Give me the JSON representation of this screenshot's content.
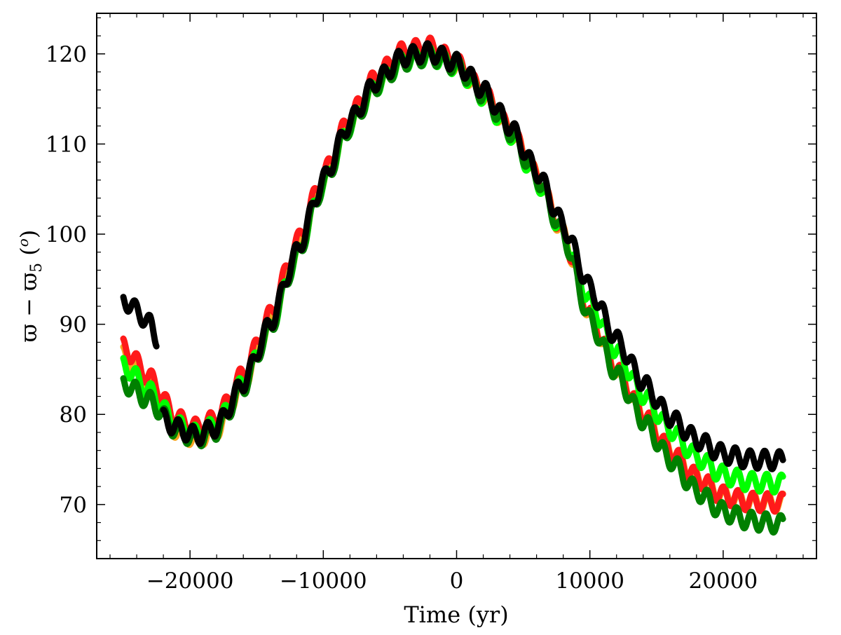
{
  "chart_data": {
    "type": "line",
    "title": "",
    "xlabel": "Time (yr)",
    "ylabel_main": "ϖ − ϖ",
    "ylabel_sub": "5",
    "ylabel_unit": " (",
    "ylabel_degree": "o",
    "ylabel_close": ")",
    "xlim": [
      -27000,
      27000
    ],
    "ylim": [
      64,
      124.5
    ],
    "x_ticks": [
      -20000,
      -10000,
      0,
      10000,
      20000
    ],
    "x_tick_labels": [
      "−20000",
      "−10000",
      "0",
      "10000",
      "20000"
    ],
    "y_ticks": [
      70,
      80,
      90,
      100,
      110,
      120
    ],
    "y_tick_labels": [
      "70",
      "80",
      "90",
      "100",
      "110",
      "120"
    ],
    "grid": false,
    "oscillation": {
      "period_yr": 1100,
      "amplitude_deg": 1.0
    },
    "series": [
      {
        "name": "orange",
        "color": "#f5a623",
        "points": [
          [
            -25000,
            86.5
          ],
          [
            -23000,
            83
          ],
          [
            -21000,
            78.2
          ],
          [
            -19500,
            77.3
          ],
          [
            -18000,
            78.3
          ],
          [
            -16000,
            83.5
          ],
          [
            -14000,
            90
          ],
          [
            -12000,
            98
          ],
          [
            -10000,
            106
          ],
          [
            -8000,
            112.5
          ],
          [
            -6000,
            117
          ],
          [
            -4000,
            119.8
          ],
          [
            -2000,
            120.5
          ],
          [
            0,
            118.8
          ],
          [
            2000,
            115.5
          ],
          [
            4000,
            111.5
          ],
          [
            6000,
            106.5
          ],
          [
            8000,
            100
          ],
          [
            10000,
            91
          ],
          [
            12000,
            85
          ],
          [
            14000,
            80
          ],
          [
            16000,
            76
          ],
          [
            18000,
            73
          ],
          [
            20000,
            71
          ],
          [
            22000,
            70.3
          ],
          [
            24500,
            70.2
          ]
        ]
      },
      {
        "name": "red",
        "color": "#ff1a1a",
        "points": [
          [
            -25000,
            87.5
          ],
          [
            -23000,
            84
          ],
          [
            -21000,
            79.5
          ],
          [
            -19500,
            78.5
          ],
          [
            -18000,
            79.5
          ],
          [
            -16000,
            84.5
          ],
          [
            -14000,
            91
          ],
          [
            -12000,
            99
          ],
          [
            -10000,
            106.5
          ],
          [
            -8000,
            113
          ],
          [
            -6000,
            117.5
          ],
          [
            -4000,
            120.3
          ],
          [
            -2000,
            120.8
          ],
          [
            0,
            119
          ],
          [
            2000,
            115.7
          ],
          [
            4000,
            111.6
          ],
          [
            6000,
            106.5
          ],
          [
            8000,
            100
          ],
          [
            10000,
            91
          ],
          [
            12000,
            85
          ],
          [
            14000,
            80
          ],
          [
            16000,
            76
          ],
          [
            18000,
            73
          ],
          [
            20000,
            71
          ],
          [
            22000,
            70.3
          ],
          [
            24500,
            70.2
          ]
        ]
      },
      {
        "name": "green",
        "color": "#00ff00",
        "points": [
          [
            -25000,
            85.5
          ],
          [
            -23000,
            82.5
          ],
          [
            -21000,
            78.8
          ],
          [
            -19500,
            77.8
          ],
          [
            -18000,
            78.8
          ],
          [
            -16000,
            83.5
          ],
          [
            -14000,
            89.5
          ],
          [
            -12000,
            97.5
          ],
          [
            -10000,
            105.5
          ],
          [
            -8000,
            112
          ],
          [
            -6000,
            116.5
          ],
          [
            -4000,
            119.2
          ],
          [
            -2000,
            119.8
          ],
          [
            0,
            118.6
          ],
          [
            2000,
            115.3
          ],
          [
            4000,
            111.2
          ],
          [
            6000,
            106
          ],
          [
            8000,
            100
          ],
          [
            10000,
            92.5
          ],
          [
            12000,
            87
          ],
          [
            14000,
            82.2
          ],
          [
            16000,
            78.4
          ],
          [
            18000,
            75.3
          ],
          [
            20000,
            73.3
          ],
          [
            22000,
            72.5
          ],
          [
            24500,
            72.3
          ]
        ]
      },
      {
        "name": "dark green",
        "color": "#008000",
        "points": [
          [
            -25000,
            83.5
          ],
          [
            -23000,
            81.5
          ],
          [
            -21000,
            78.2
          ],
          [
            -19500,
            77.3
          ],
          [
            -18000,
            78.2
          ],
          [
            -16000,
            83
          ],
          [
            -14000,
            89.5
          ],
          [
            -12000,
            97.5
          ],
          [
            -10000,
            105.5
          ],
          [
            -8000,
            112
          ],
          [
            -6000,
            116.5
          ],
          [
            -4000,
            119.2
          ],
          [
            -2000,
            119.8
          ],
          [
            0,
            118.7
          ],
          [
            2000,
            115.5
          ],
          [
            4000,
            111.4
          ],
          [
            6000,
            106.3
          ],
          [
            8000,
            100
          ],
          [
            10000,
            90.5
          ],
          [
            12000,
            84.5
          ],
          [
            14000,
            79.3
          ],
          [
            16000,
            75
          ],
          [
            18000,
            71.5
          ],
          [
            20000,
            69.2
          ],
          [
            22000,
            68.2
          ],
          [
            24500,
            67.8
          ]
        ]
      },
      {
        "name": "black (segment 1)",
        "color": "#000000",
        "points": [
          [
            -25000,
            92.8
          ],
          [
            -24000,
            91.5
          ],
          [
            -23000,
            90
          ],
          [
            -22500,
            88.5
          ]
        ]
      },
      {
        "name": "black",
        "color": "#000000",
        "points": [
          [
            -22000,
            79.5
          ],
          [
            -21000,
            78.5
          ],
          [
            -19500,
            77.6
          ],
          [
            -18000,
            78.6
          ],
          [
            -16000,
            83.5
          ],
          [
            -14000,
            90
          ],
          [
            -12000,
            98
          ],
          [
            -10000,
            106
          ],
          [
            -8000,
            112.5
          ],
          [
            -6000,
            117
          ],
          [
            -4000,
            119.7
          ],
          [
            -2000,
            120.2
          ],
          [
            0,
            119
          ],
          [
            2000,
            116
          ],
          [
            4000,
            112
          ],
          [
            6000,
            107
          ],
          [
            8000,
            101
          ],
          [
            10000,
            94
          ],
          [
            12000,
            88.3
          ],
          [
            14000,
            83.5
          ],
          [
            16000,
            79.7
          ],
          [
            18000,
            77.2
          ],
          [
            20000,
            75.6
          ],
          [
            22000,
            75
          ],
          [
            24500,
            74.9
          ]
        ]
      }
    ]
  }
}
